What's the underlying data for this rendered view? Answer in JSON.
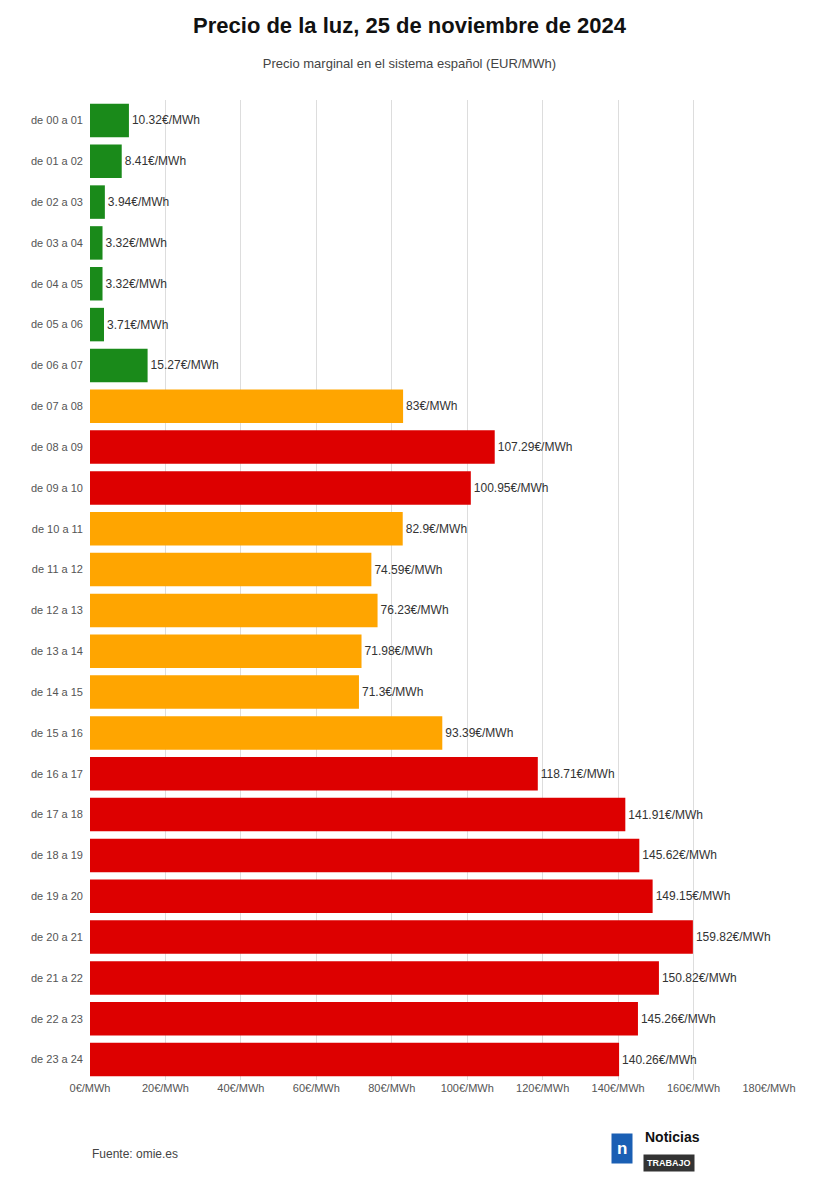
{
  "chart_data": {
    "type": "bar",
    "orientation": "horizontal",
    "title": "Precio de la luz, 25 de noviembre de 2024",
    "subtitle": "Precio marginal en el sistema español (EUR/MWh)",
    "categories": [
      "de 00 a 01",
      "de 01 a 02",
      "de 02 a 03",
      "de 03 a 04",
      "de 04 a 05",
      "de 05 a 06",
      "de 06 a 07",
      "de 07 a 08",
      "de 08 a 09",
      "de 09 a 10",
      "de 10 a 11",
      "de 11 a 12",
      "de 12 a 13",
      "de 13 a 14",
      "de 14 a 15",
      "de 15 a 16",
      "de 16 a 17",
      "de 17 a 18",
      "de 18 a 19",
      "de 19 a 20",
      "de 20 a 21",
      "de 21 a 22",
      "de 22 a 23",
      "de 23 a 24"
    ],
    "values": [
      10.32,
      8.41,
      3.94,
      3.32,
      3.32,
      3.71,
      15.27,
      83.0,
      107.29,
      100.95,
      82.9,
      74.59,
      76.23,
      71.98,
      71.3,
      93.39,
      118.71,
      141.91,
      145.62,
      149.15,
      159.82,
      150.82,
      145.26,
      140.26
    ],
    "value_labels": [
      "10.32€/MWh",
      "8.41€/MWh",
      "3.94€/MWh",
      "3.32€/MWh",
      "3.32€/MWh",
      "3.71€/MWh",
      "15.27€/MWh",
      "83€/MWh",
      "107.29€/MWh",
      "100.95€/MWh",
      "82.9€/MWh",
      "74.59€/MWh",
      "76.23€/MWh",
      "71.98€/MWh",
      "71.3€/MWh",
      "93.39€/MWh",
      "118.71€/MWh",
      "141.91€/MWh",
      "145.62€/MWh",
      "149.15€/MWh",
      "159.82€/MWh",
      "150.82€/MWh",
      "145.26€/MWh",
      "140.26€/MWh"
    ],
    "data_labels": true,
    "colors": [
      "#1a8a1a",
      "#1a8a1a",
      "#1a8a1a",
      "#1a8a1a",
      "#1a8a1a",
      "#1a8a1a",
      "#1a8a1a",
      "#FFA500",
      "#dd0000",
      "#dd0000",
      "#FFA500",
      "#FFA500",
      "#FFA500",
      "#FFA500",
      "#FFA500",
      "#FFA500",
      "#dd0000",
      "#dd0000",
      "#dd0000",
      "#dd0000",
      "#dd0000",
      "#dd0000",
      "#dd0000",
      "#dd0000"
    ],
    "xlim": [
      0,
      180
    ],
    "xticks": [
      {
        "value": 0,
        "label": "0€/MWh"
      },
      {
        "value": 20,
        "label": "20€/MWh"
      },
      {
        "value": 40,
        "label": "40€/MWh"
      },
      {
        "value": 60,
        "label": "60€/MWh"
      },
      {
        "value": 80,
        "label": "80€/MWh"
      },
      {
        "value": 100,
        "label": "100€/MWh"
      },
      {
        "value": 120,
        "label": "120€/MWh"
      },
      {
        "value": 140,
        "label": "140€/MWh"
      },
      {
        "value": 160,
        "label": "160€/MWh"
      },
      {
        "value": 180,
        "label": "180€/MWh"
      }
    ],
    "grid": true,
    "annotations": [
      "Fuente: omie.es",
      "n",
      "Noticias",
      "TRABAJO"
    ]
  }
}
